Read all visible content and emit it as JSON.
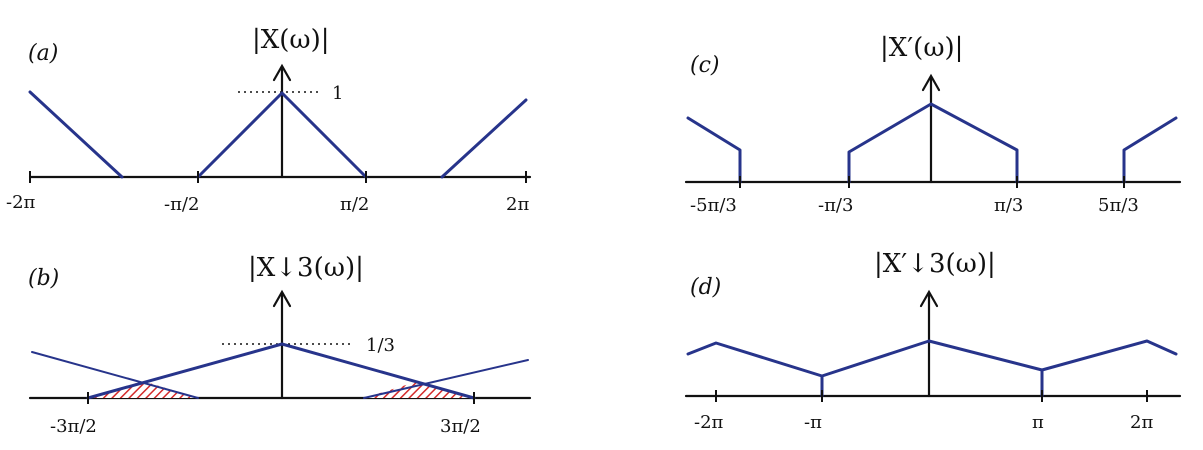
{
  "colors": {
    "spectrum": "#27348b",
    "alias_hatch": "#d42a2a",
    "ink": "#111111"
  },
  "panels": {
    "a": {
      "label": "(a)",
      "title": "|X(ω)|",
      "peak_label": "1",
      "ticks": [
        "-2π",
        "-π/2",
        "π/2",
        "2π"
      ]
    },
    "b": {
      "label": "(b)",
      "title": "|X↓3(ω)|",
      "peak_label": "1/3",
      "ticks": [
        "-3π/2",
        "3π/2"
      ]
    },
    "c": {
      "label": "(c)",
      "title": "|X′(ω)|",
      "ticks": [
        "-5π/3",
        "-π/3",
        "π/3",
        "5π/3"
      ]
    },
    "d": {
      "label": "(d)",
      "title": "|X′↓3(ω)|",
      "ticks": [
        "-2π",
        "-π",
        "π",
        "2π"
      ]
    }
  }
}
